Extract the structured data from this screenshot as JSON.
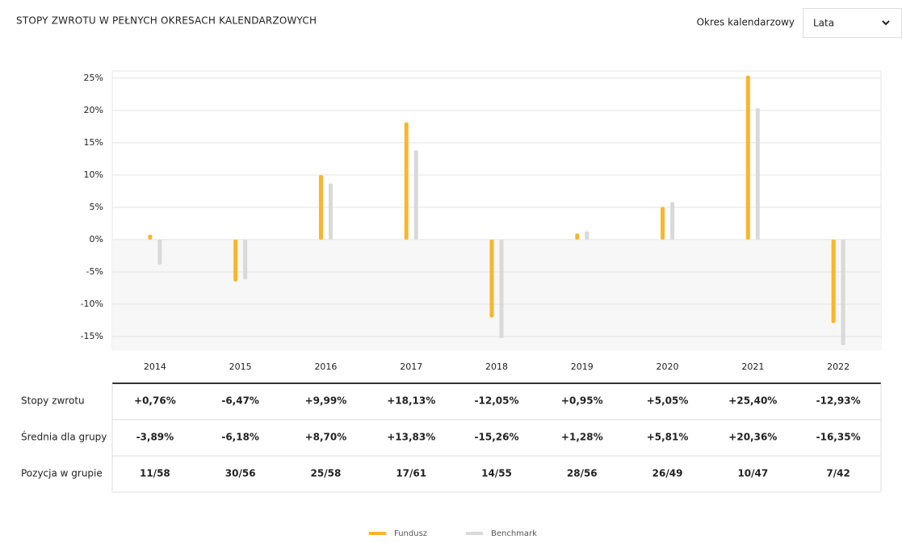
{
  "header": {
    "title": "STOPY ZWROTU W PEŁNYCH OKRESACH KALENDARZOWYCH",
    "period_label": "Okres kalendarzowy",
    "period_value": "Lata"
  },
  "chart_data": {
    "type": "bar",
    "categories": [
      "2014",
      "2015",
      "2016",
      "2017",
      "2018",
      "2019",
      "2020",
      "2021",
      "2022"
    ],
    "series": [
      {
        "name": "Fundusz",
        "row_label": "Stopy zwrotu",
        "color": "#fbb52c",
        "values": [
          0.76,
          -6.47,
          9.99,
          18.13,
          -12.05,
          0.95,
          5.05,
          25.4,
          -12.93
        ],
        "value_labels": [
          "+0,76%",
          "-6,47%",
          "+9,99%",
          "+18,13%",
          "-12,05%",
          "+0,95%",
          "+5,05%",
          "+25,40%",
          "-12,93%"
        ]
      },
      {
        "name": "Benchmark",
        "row_label": "Średnia dla grupy",
        "color": "#d9d9d9",
        "values": [
          -3.89,
          -6.18,
          8.7,
          13.83,
          -15.26,
          1.28,
          5.81,
          20.36,
          -16.35
        ],
        "value_labels": [
          "-3,89%",
          "-6,18%",
          "+8,70%",
          "+13,83%",
          "-15,26%",
          "+1,28%",
          "+5,81%",
          "+20,36%",
          "-16,35%"
        ]
      }
    ],
    "position_row": {
      "label": "Pozycja w grupie",
      "values": [
        "11/58",
        "30/56",
        "25/58",
        "17/61",
        "14/55",
        "28/56",
        "26/49",
        "10/47",
        "7/42"
      ]
    },
    "ylim": [
      -17,
      26.1
    ],
    "yticks": [
      {
        "value": -15,
        "label": "-15%"
      },
      {
        "value": -10,
        "label": "-10%"
      },
      {
        "value": -5,
        "label": "-5%"
      },
      {
        "value": 0,
        "label": "0%"
      },
      {
        "value": 5,
        "label": "5%"
      },
      {
        "value": 10,
        "label": "10%"
      },
      {
        "value": 15,
        "label": "15%"
      },
      {
        "value": 20,
        "label": "20%"
      },
      {
        "value": 25,
        "label": "25%"
      }
    ],
    "grid": true
  }
}
